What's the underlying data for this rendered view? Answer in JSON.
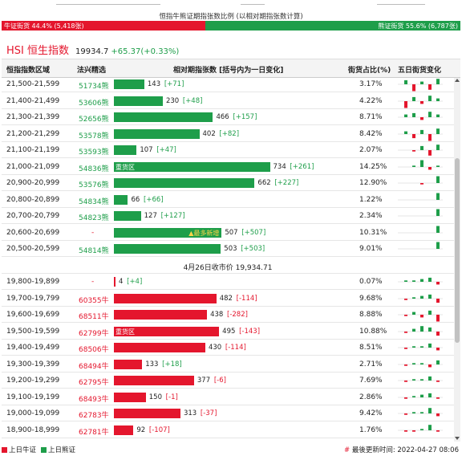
{
  "ratio": {
    "caption": "恒指牛熊证期指张数比例 (以相对期指张数计算)",
    "bull_label": "牛证街货 44.4% (5,418张)",
    "bear_label": "熊证街货 55.6% (6,787张)",
    "bull_fraction": 0.444,
    "colors": {
      "bull": "#e4162d",
      "bear": "#1e9e4a"
    }
  },
  "index": {
    "name": "HSI 恒生指数",
    "value": "19934.7",
    "change": "+65.37(+0.33%)"
  },
  "table": {
    "headers": {
      "range": "恒指指数区域",
      "code": "法兴精选",
      "contracts": "相对期指张数 [括号内为一日变化]",
      "pct": "街货占比(%)",
      "trend": "五日街货变化"
    },
    "bear_rows": [
      {
        "range": "21,500-21,599",
        "code": "51734熊",
        "value": 143,
        "change": "[+71]",
        "pct": "3.17%",
        "spark": [
          3,
          -5,
          2,
          -4,
          4
        ]
      },
      {
        "range": "21,400-21,499",
        "code": "53606熊",
        "value": 230,
        "change": "[+48]",
        "pct": "4.22%",
        "spark": [
          -5,
          3,
          -2,
          4,
          2
        ]
      },
      {
        "range": "21,300-21,399",
        "code": "52656熊",
        "value": 466,
        "change": "[+157]",
        "pct": "8.71%",
        "spark": [
          2,
          3,
          -2,
          4,
          2
        ]
      },
      {
        "range": "21,200-21,299",
        "code": "53578熊",
        "value": 402,
        "change": "[+82]",
        "pct": "8.42%",
        "spark": [
          2,
          -3,
          3,
          -5,
          4
        ]
      },
      {
        "range": "21,100-21,199",
        "code": "53593熊",
        "value": 107,
        "change": "[+47]",
        "pct": "2.07%",
        "spark": [
          0,
          -1,
          3,
          -4,
          4
        ]
      },
      {
        "range": "21,000-21,099",
        "code": "54836熊",
        "value": 734,
        "change": "[+261]",
        "pct": "14.25%",
        "spark": [
          0,
          1,
          5,
          -2,
          1
        ],
        "tag": "重货区"
      },
      {
        "range": "20,900-20,999",
        "code": "53576熊",
        "value": 662,
        "change": "[+227]",
        "pct": "12.90%",
        "spark": [
          0,
          0,
          -1,
          0,
          5
        ]
      },
      {
        "range": "20,800-20,899",
        "code": "54834熊",
        "value": 66,
        "change": "[+66]",
        "pct": "1.22%",
        "spark": [
          0,
          0,
          0,
          0,
          5
        ]
      },
      {
        "range": "20,700-20,799",
        "code": "54823熊",
        "value": 127,
        "change": "[+127]",
        "pct": "2.34%",
        "spark": [
          0,
          0,
          0,
          0,
          5
        ]
      },
      {
        "range": "20,600-20,699",
        "code": "-",
        "value": 507,
        "change": "[+507]",
        "pct": "10.31%",
        "spark": [
          0,
          0,
          0,
          0,
          5
        ],
        "hint": "▲最多新增"
      },
      {
        "range": "20,500-20,599",
        "code": "54814熊",
        "value": 503,
        "change": "[+503]",
        "pct": "9.01%",
        "spark": [
          0,
          0,
          0,
          0,
          5
        ]
      }
    ],
    "close_label": "4月26日收市价 19,934.71",
    "bull_rows": [
      {
        "range": "19,800-19,899",
        "code": "-",
        "value": 4,
        "change": "[+4]",
        "pct": "0.07%",
        "spark": [
          1,
          1,
          2,
          3,
          -2
        ]
      },
      {
        "range": "19,700-19,799",
        "code": "60355牛",
        "value": 482,
        "change": "[-114]",
        "pct": "9.68%",
        "spark": [
          -1,
          1,
          2,
          3,
          -3
        ]
      },
      {
        "range": "19,600-19,699",
        "code": "68511牛",
        "value": 438,
        "change": "[-282]",
        "pct": "8.88%",
        "spark": [
          -1,
          2,
          -2,
          3,
          -5
        ]
      },
      {
        "range": "19,500-19,599",
        "code": "62799牛",
        "value": 495,
        "change": "[-143]",
        "pct": "10.88%",
        "spark": [
          -1,
          2,
          4,
          3,
          -3
        ],
        "tag": "重货区"
      },
      {
        "range": "19,400-19,499",
        "code": "68506牛",
        "value": 430,
        "change": "[-114]",
        "pct": "8.51%",
        "spark": [
          -1,
          1,
          1,
          3,
          -2
        ]
      },
      {
        "range": "19,300-19,399",
        "code": "68494牛",
        "value": 133,
        "change": "[+18]",
        "pct": "2.71%",
        "spark": [
          -1,
          1,
          1,
          -2,
          3
        ]
      },
      {
        "range": "19,200-19,299",
        "code": "62795牛",
        "value": 377,
        "change": "[-6]",
        "pct": "7.69%",
        "spark": [
          -1,
          1,
          1,
          3,
          -1
        ]
      },
      {
        "range": "19,100-19,199",
        "code": "68493牛",
        "value": 150,
        "change": "[-1]",
        "pct": "2.86%",
        "spark": [
          -1,
          1,
          2,
          3,
          -1
        ]
      },
      {
        "range": "19,000-19,099",
        "code": "62783牛",
        "value": 313,
        "change": "[-37]",
        "pct": "9.42%",
        "spark": [
          -1,
          1,
          1,
          4,
          -2
        ]
      },
      {
        "range": "18,900-18,999",
        "code": "62781牛",
        "value": 92,
        "change": "[-107]",
        "pct": "1.76%",
        "spark": [
          -1,
          -1,
          1,
          4,
          -1
        ]
      }
    ]
  },
  "footer": {
    "legend_bull": "上日牛证",
    "legend_bear": "上日熊证",
    "updated": "最後更新时间: 2022-04-27 08:06"
  }
}
